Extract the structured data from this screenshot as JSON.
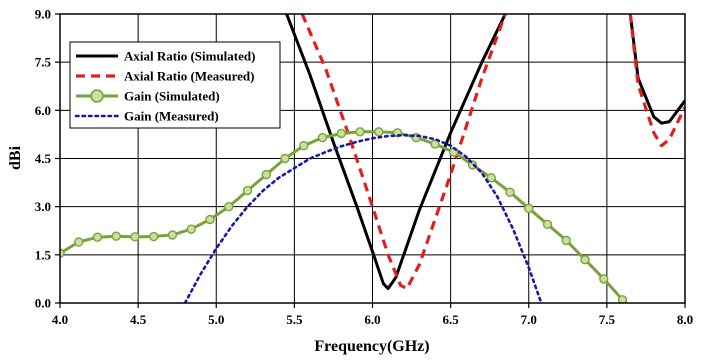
{
  "chart_data": {
    "type": "line",
    "title": "",
    "xlabel": "Frequency(GHz)",
    "ylabel": "dBi",
    "xlim": [
      4.0,
      8.0
    ],
    "ylim": [
      0.0,
      9.0
    ],
    "x_ticks": [
      "4.0",
      "4.5",
      "5.0",
      "5.5",
      "6.0",
      "6.5",
      "7.0",
      "7.5",
      "8.0"
    ],
    "y_ticks": [
      "0.0",
      "1.5",
      "3.0",
      "4.5",
      "6.0",
      "7.5",
      "9.0"
    ],
    "grid": true,
    "legend_position": "top-left",
    "series": [
      {
        "name": "Axial Ratio (Simulated)",
        "color": "#000000",
        "style": "solid",
        "segments": [
          [
            [
              5.45,
              9.0
            ],
            [
              5.6,
              7.1
            ],
            [
              5.75,
              5.0
            ],
            [
              5.9,
              3.0
            ],
            [
              6.0,
              1.6
            ],
            [
              6.07,
              0.6
            ],
            [
              6.1,
              0.45
            ],
            [
              6.15,
              0.8
            ],
            [
              6.3,
              2.9
            ],
            [
              6.5,
              5.3
            ],
            [
              6.7,
              7.5
            ],
            [
              6.85,
              9.0
            ]
          ],
          [
            [
              7.65,
              9.0
            ],
            [
              7.7,
              7.0
            ],
            [
              7.8,
              5.8
            ],
            [
              7.85,
              5.6
            ],
            [
              7.9,
              5.65
            ],
            [
              8.0,
              6.3
            ]
          ]
        ]
      },
      {
        "name": "Axial Ratio (Measured)",
        "color": "#e02020",
        "style": "dashed",
        "segments": [
          [
            [
              5.55,
              9.0
            ],
            [
              5.7,
              7.3
            ],
            [
              5.85,
              5.2
            ],
            [
              6.0,
              3.0
            ],
            [
              6.1,
              1.5
            ],
            [
              6.18,
              0.55
            ],
            [
              6.22,
              0.45
            ],
            [
              6.3,
              1.2
            ],
            [
              6.5,
              4.0
            ],
            [
              6.7,
              7.0
            ],
            [
              6.85,
              9.0
            ]
          ],
          [
            [
              7.65,
              9.0
            ],
            [
              7.7,
              6.8
            ],
            [
              7.8,
              5.3
            ],
            [
              7.85,
              4.9
            ],
            [
              7.9,
              5.1
            ],
            [
              8.0,
              6.1
            ]
          ]
        ]
      },
      {
        "name": "Gain (Simulated)",
        "color": "#7aa23a",
        "marker_fill": "#c9e0a2",
        "style": "solid-markers",
        "x": [
          4.0,
          4.12,
          4.24,
          4.36,
          4.48,
          4.6,
          4.72,
          4.84,
          4.96,
          5.08,
          5.2,
          5.32,
          5.44,
          5.56,
          5.68,
          5.8,
          5.92,
          6.04,
          6.16,
          6.28,
          6.4,
          6.52,
          6.64,
          6.76,
          6.88,
          7.0,
          7.12,
          7.24,
          7.36,
          7.48,
          7.6
        ],
        "y": [
          1.55,
          1.9,
          2.05,
          2.08,
          2.06,
          2.07,
          2.12,
          2.3,
          2.6,
          3.0,
          3.5,
          4.0,
          4.5,
          4.9,
          5.15,
          5.28,
          5.33,
          5.33,
          5.3,
          5.15,
          4.95,
          4.7,
          4.3,
          3.9,
          3.45,
          2.95,
          2.45,
          1.95,
          1.35,
          0.75,
          0.1
        ]
      },
      {
        "name": "Gain (Measured)",
        "color": "#1a1aa0",
        "style": "dotted",
        "x": [
          4.8,
          4.9,
          5.0,
          5.1,
          5.2,
          5.3,
          5.4,
          5.5,
          5.6,
          5.7,
          5.8,
          5.9,
          6.0,
          6.1,
          6.2,
          6.3,
          6.4,
          6.5,
          6.6,
          6.7,
          6.8,
          6.9,
          7.0,
          7.08
        ],
        "y": [
          0.0,
          0.9,
          1.7,
          2.4,
          3.0,
          3.5,
          3.9,
          4.2,
          4.5,
          4.7,
          4.88,
          5.02,
          5.13,
          5.2,
          5.23,
          5.2,
          5.1,
          4.9,
          4.55,
          4.05,
          3.3,
          2.3,
          1.1,
          0.0
        ]
      }
    ]
  }
}
